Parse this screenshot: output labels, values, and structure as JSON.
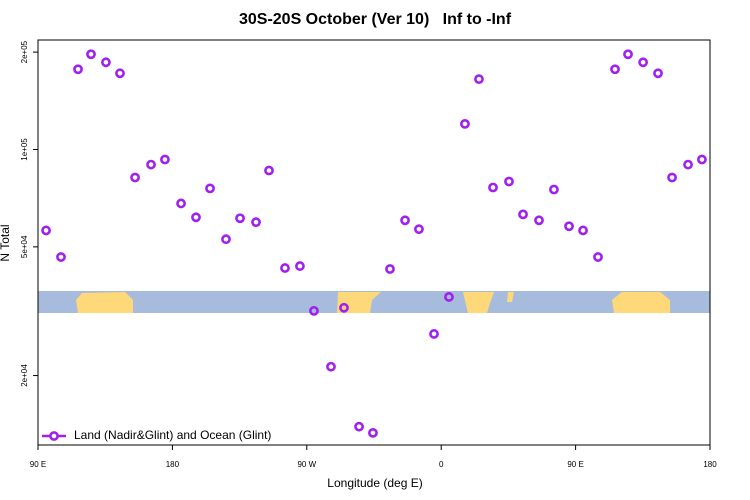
{
  "chart_data": {
    "type": "scatter",
    "title": "30S-20S October (Ver 10)   Inf to -Inf",
    "x_label": "Longitude (deg E)",
    "y_label": "N Total",
    "x": [
      95.4,
      105.4,
      116.8,
      125.5,
      135.5,
      144.9,
      155,
      165.7,
      175,
      185.8,
      195.8,
      205.2,
      215.9,
      225.3,
      236,
      244.7,
      255.4,
      265.4,
      274.8,
      286.2,
      294.9,
      305,
      314.3,
      325.7,
      335.8,
      345.1,
      355.2,
      365.2,
      375.9,
      385.3,
      394.7,
      405.4,
      414.8,
      425.5,
      435.5,
      445.6,
      455,
      465,
      476.4,
      485.1,
      495.2,
      505.2,
      514.6,
      525.3,
      534.6
    ],
    "series": [
      {
        "name": "Land (Nadir&Glint) and Ocean (Glint)",
        "color": "#a020f0",
        "values": [
          56200,
          46500,
          177000,
          197000,
          186000,
          172000,
          81900,
          89800,
          93100,
          68100,
          61700,
          75800,
          52800,
          61300,
          59600,
          86100,
          43000,
          43600,
          31700,
          21300,
          32400,
          13900,
          13300,
          42700,
          60400,
          56700,
          26900,
          35000,
          120000,
          165000,
          76300,
          79600,
          63000,
          60400,
          75200,
          57900,
          56200,
          46500,
          177000,
          197000,
          186000,
          172000,
          81900,
          89800,
          93100
        ]
      }
    ],
    "xlim": [
      90,
      540
    ],
    "xticks": [
      {
        "value": 90,
        "label": "90 E"
      },
      180,
      {
        "value": 270,
        "label": "90 W"
      },
      {
        "value": 360,
        "label": "0"
      },
      {
        "value": 450,
        "label": "90 E"
      },
      {
        "value": 540,
        "label": "180"
      }
    ],
    "ylim": [
      12200,
      218000
    ],
    "yticks": [
      {
        "value": 20000,
        "label": "2e+04"
      },
      {
        "value": 50000,
        "label": "5e+04"
      },
      {
        "value": 100000,
        "label": "1e+05"
      },
      {
        "value": 200000,
        "label": "2e+05"
      }
    ],
    "ylog": true,
    "legend": "bottom-left"
  }
}
